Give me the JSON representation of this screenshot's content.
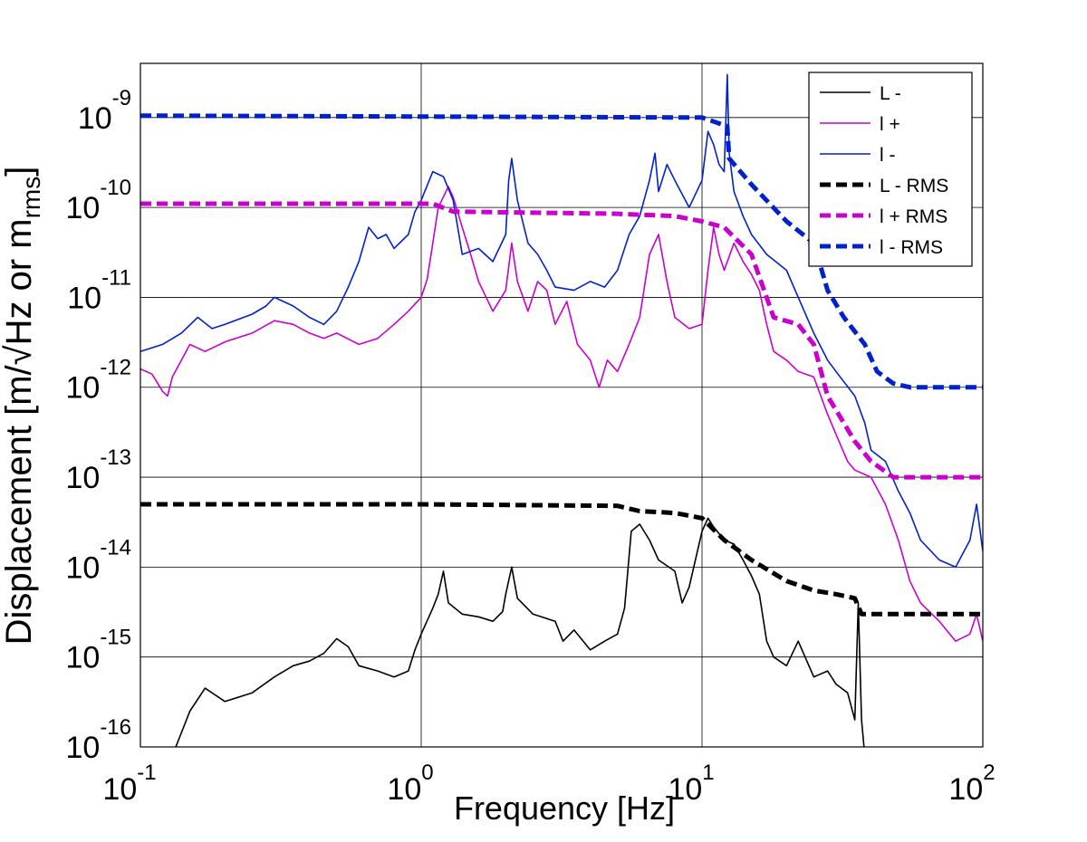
{
  "chart_data": {
    "type": "line",
    "xscale": "log",
    "yscale": "log",
    "xlim": [
      0.1,
      100
    ],
    "ylim": [
      1e-16,
      4e-09
    ],
    "grid": true,
    "legend_position": "top-right",
    "xlabel": "Frequency [Hz]",
    "ylabel": {
      "main": "Displacement [m/√Hz or m",
      "sub": "rms",
      "close": "]"
    },
    "x_ticks": [
      {
        "base": "10",
        "exp": "-1",
        "value": 0.1
      },
      {
        "base": "10",
        "exp": "0",
        "value": 1
      },
      {
        "base": "10",
        "exp": "1",
        "value": 10
      },
      {
        "base": "10",
        "exp": "2",
        "value": 100
      }
    ],
    "y_ticks": [
      {
        "base": "10",
        "exp": "-9",
        "value": 1e-09
      },
      {
        "base": "10",
        "exp": "-10",
        "value": 1e-10
      },
      {
        "base": "10",
        "exp": "-11",
        "value": 1e-11
      },
      {
        "base": "10",
        "exp": "-12",
        "value": 1e-12
      },
      {
        "base": "10",
        "exp": "-13",
        "value": 1e-13
      },
      {
        "base": "10",
        "exp": "-14",
        "value": 1e-14
      },
      {
        "base": "10",
        "exp": "-15",
        "value": 1e-15
      },
      {
        "base": "10",
        "exp": "-16",
        "value": 1e-16
      }
    ],
    "series": [
      {
        "name": "L -",
        "color": "#000000",
        "style": "solid",
        "points": [
          [
            0.1,
            2e-17
          ],
          [
            0.13,
            8e-17
          ],
          [
            0.15,
            2.5e-16
          ],
          [
            0.17,
            4.5e-16
          ],
          [
            0.2,
            3.2e-16
          ],
          [
            0.25,
            4e-16
          ],
          [
            0.3,
            6e-16
          ],
          [
            0.35,
            8e-16
          ],
          [
            0.4,
            9e-16
          ],
          [
            0.45,
            1.1e-15
          ],
          [
            0.5,
            1.6e-15
          ],
          [
            0.55,
            1.3e-15
          ],
          [
            0.6,
            8e-16
          ],
          [
            0.7,
            7e-16
          ],
          [
            0.8,
            6e-16
          ],
          [
            0.9,
            7e-16
          ],
          [
            0.95,
            1.2e-15
          ],
          [
            1.0,
            1.8e-15
          ],
          [
            1.1,
            3.5e-15
          ],
          [
            1.15,
            5e-15
          ],
          [
            1.2,
            9e-15
          ],
          [
            1.25,
            4e-15
          ],
          [
            1.4,
            3e-15
          ],
          [
            1.6,
            2.8e-15
          ],
          [
            1.8,
            2.5e-15
          ],
          [
            1.95,
            3.2e-15
          ],
          [
            2.0,
            5e-15
          ],
          [
            2.1,
            1e-14
          ],
          [
            2.2,
            4.5e-15
          ],
          [
            2.5,
            3e-15
          ],
          [
            3.0,
            2.5e-15
          ],
          [
            3.2,
            1.5e-15
          ],
          [
            3.5,
            2e-15
          ],
          [
            4.0,
            1.2e-15
          ],
          [
            4.5,
            1.5e-15
          ],
          [
            5.0,
            1.8e-15
          ],
          [
            5.3,
            3.5e-15
          ],
          [
            5.6,
            2.5e-14
          ],
          [
            6.0,
            3e-14
          ],
          [
            6.5,
            2e-14
          ],
          [
            7.0,
            1.2e-14
          ],
          [
            8.0,
            9e-15
          ],
          [
            8.5,
            4e-15
          ],
          [
            9.0,
            6e-15
          ],
          [
            10,
            2.5e-14
          ],
          [
            10.5,
            3.5e-14
          ],
          [
            11,
            2.8e-14
          ],
          [
            12,
            2e-14
          ],
          [
            13,
            1.8e-14
          ],
          [
            14,
            1.2e-14
          ],
          [
            15,
            8e-15
          ],
          [
            16,
            5e-15
          ],
          [
            17,
            1.5e-15
          ],
          [
            18,
            1e-15
          ],
          [
            20,
            8e-16
          ],
          [
            22,
            1.5e-15
          ],
          [
            25,
            6e-16
          ],
          [
            28,
            7e-16
          ],
          [
            30,
            5e-16
          ],
          [
            33,
            4e-16
          ],
          [
            35,
            2e-16
          ],
          [
            36,
            4e-15
          ],
          [
            37,
            2e-16
          ],
          [
            38,
            8e-17
          ],
          [
            40,
            3e-17
          ]
        ]
      },
      {
        "name": "l +",
        "color": "#cc00cc",
        "style": "solid",
        "points": [
          [
            0.1,
            1.6e-12
          ],
          [
            0.11,
            1.4e-12
          ],
          [
            0.12,
            9e-13
          ],
          [
            0.125,
            8e-13
          ],
          [
            0.13,
            1.3e-12
          ],
          [
            0.14,
            2e-12
          ],
          [
            0.15,
            3e-12
          ],
          [
            0.17,
            2.5e-12
          ],
          [
            0.2,
            3.2e-12
          ],
          [
            0.25,
            4e-12
          ],
          [
            0.3,
            5.5e-12
          ],
          [
            0.35,
            5e-12
          ],
          [
            0.4,
            4e-12
          ],
          [
            0.45,
            3.5e-12
          ],
          [
            0.5,
            4e-12
          ],
          [
            0.6,
            3e-12
          ],
          [
            0.7,
            3.5e-12
          ],
          [
            0.8,
            5e-12
          ],
          [
            0.9,
            7e-12
          ],
          [
            1.0,
            1e-11
          ],
          [
            1.05,
            1.6e-11
          ],
          [
            1.1,
            4e-11
          ],
          [
            1.15,
            1e-10
          ],
          [
            1.25,
            1.7e-10
          ],
          [
            1.3,
            1.3e-10
          ],
          [
            1.4,
            6e-11
          ],
          [
            1.5,
            3e-11
          ],
          [
            1.6,
            1.5e-11
          ],
          [
            1.8,
            7e-12
          ],
          [
            2.0,
            1.2e-11
          ],
          [
            2.1,
            4e-11
          ],
          [
            2.2,
            1.5e-11
          ],
          [
            2.4,
            7e-12
          ],
          [
            2.6,
            1.5e-11
          ],
          [
            2.8,
            1.2e-11
          ],
          [
            3.0,
            5e-12
          ],
          [
            3.3,
            9e-12
          ],
          [
            3.6,
            3e-12
          ],
          [
            4.0,
            2e-12
          ],
          [
            4.3,
            1e-12
          ],
          [
            4.6,
            2e-12
          ],
          [
            5.0,
            1.5e-12
          ],
          [
            5.5,
            3e-12
          ],
          [
            6.0,
            6e-12
          ],
          [
            6.5,
            3e-11
          ],
          [
            7.0,
            5e-11
          ],
          [
            7.5,
            1.5e-11
          ],
          [
            8.0,
            6e-12
          ],
          [
            9.0,
            4.5e-12
          ],
          [
            10,
            5e-12
          ],
          [
            10.5,
            2e-11
          ],
          [
            11,
            6e-11
          ],
          [
            11.5,
            3e-11
          ],
          [
            12,
            2e-11
          ],
          [
            13,
            4e-11
          ],
          [
            14,
            2.5e-11
          ],
          [
            15,
            1.8e-11
          ],
          [
            16,
            1.2e-11
          ],
          [
            17,
            5e-12
          ],
          [
            18,
            2.5e-12
          ],
          [
            20,
            2e-12
          ],
          [
            22,
            1.5e-12
          ],
          [
            25,
            1.3e-12
          ],
          [
            28,
            5e-13
          ],
          [
            30,
            3e-13
          ],
          [
            33,
            1.5e-13
          ],
          [
            35,
            1.2e-13
          ],
          [
            40,
            1e-13
          ],
          [
            45,
            5e-14
          ],
          [
            50,
            2e-14
          ],
          [
            55,
            7e-15
          ],
          [
            60,
            4e-15
          ],
          [
            70,
            2.5e-15
          ],
          [
            80,
            1.5e-15
          ],
          [
            90,
            1.8e-15
          ],
          [
            95,
            3e-15
          ],
          [
            100,
            1.5e-15
          ]
        ]
      },
      {
        "name": "l -",
        "color": "#0022cc",
        "style": "solid",
        "points": [
          [
            0.1,
            2.5e-12
          ],
          [
            0.12,
            3e-12
          ],
          [
            0.14,
            4e-12
          ],
          [
            0.16,
            6e-12
          ],
          [
            0.18,
            4.5e-12
          ],
          [
            0.2,
            5e-12
          ],
          [
            0.25,
            6.5e-12
          ],
          [
            0.28,
            8e-12
          ],
          [
            0.3,
            1e-11
          ],
          [
            0.35,
            8e-12
          ],
          [
            0.4,
            6e-12
          ],
          [
            0.45,
            5e-12
          ],
          [
            0.5,
            7e-12
          ],
          [
            0.55,
            1.3e-11
          ],
          [
            0.6,
            2.5e-11
          ],
          [
            0.65,
            6e-11
          ],
          [
            0.7,
            4.5e-11
          ],
          [
            0.75,
            5e-11
          ],
          [
            0.8,
            3.5e-11
          ],
          [
            0.9,
            5e-11
          ],
          [
            0.95,
            9e-11
          ],
          [
            1.0,
            1.2e-10
          ],
          [
            1.1,
            2.5e-10
          ],
          [
            1.2,
            2.2e-10
          ],
          [
            1.3,
            1.2e-10
          ],
          [
            1.4,
            3e-11
          ],
          [
            1.6,
            3.5e-11
          ],
          [
            1.8,
            2.5e-11
          ],
          [
            2.0,
            5e-11
          ],
          [
            2.05,
            2e-10
          ],
          [
            2.1,
            3.5e-10
          ],
          [
            2.2,
            1.2e-10
          ],
          [
            2.4,
            4e-11
          ],
          [
            2.6,
            3e-11
          ],
          [
            2.8,
            2e-11
          ],
          [
            3.0,
            1.3e-11
          ],
          [
            3.5,
            1.2e-11
          ],
          [
            4.0,
            1.5e-11
          ],
          [
            4.5,
            1.3e-11
          ],
          [
            5.0,
            2e-11
          ],
          [
            5.5,
            5e-11
          ],
          [
            6.0,
            8e-11
          ],
          [
            6.5,
            2e-10
          ],
          [
            6.8,
            4e-10
          ],
          [
            7.0,
            1.5e-10
          ],
          [
            7.5,
            3e-10
          ],
          [
            8.0,
            2e-10
          ],
          [
            9.0,
            1e-10
          ],
          [
            10,
            2e-10
          ],
          [
            10.5,
            7e-10
          ],
          [
            11,
            5e-10
          ],
          [
            11.5,
            3e-10
          ],
          [
            12,
            2.5e-10
          ],
          [
            12.3,
            3e-09
          ],
          [
            12.5,
            4e-10
          ],
          [
            13,
            1.5e-10
          ],
          [
            14,
            8e-11
          ],
          [
            15,
            5e-11
          ],
          [
            17,
            3e-11
          ],
          [
            20,
            2e-11
          ],
          [
            22,
            1e-11
          ],
          [
            25,
            4e-12
          ],
          [
            28,
            2e-12
          ],
          [
            30,
            1.5e-12
          ],
          [
            35,
            8e-13
          ],
          [
            38,
            4e-13
          ],
          [
            40,
            2e-13
          ],
          [
            45,
            1.5e-13
          ],
          [
            50,
            7e-14
          ],
          [
            55,
            4e-14
          ],
          [
            60,
            2e-14
          ],
          [
            70,
            1.2e-14
          ],
          [
            80,
            1e-14
          ],
          [
            90,
            2e-14
          ],
          [
            95,
            5e-14
          ],
          [
            100,
            1.5e-14
          ]
        ]
      },
      {
        "name": "L - RMS",
        "color": "#000000",
        "style": "dashed",
        "points": [
          [
            0.1,
            5e-14
          ],
          [
            1,
            5e-14
          ],
          [
            5,
            4.8e-14
          ],
          [
            6,
            4.2e-14
          ],
          [
            8,
            4e-14
          ],
          [
            10,
            3.5e-14
          ],
          [
            12,
            2e-14
          ],
          [
            15,
            1.2e-14
          ],
          [
            20,
            7e-15
          ],
          [
            25,
            5.5e-15
          ],
          [
            30,
            5e-15
          ],
          [
            35,
            4.5e-15
          ],
          [
            37,
            3e-15
          ],
          [
            100,
            3e-15
          ]
        ]
      },
      {
        "name": "l + RMS",
        "color": "#cc00cc",
        "style": "dashed",
        "points": [
          [
            0.1,
            1.1e-10
          ],
          [
            1.1,
            1.1e-10
          ],
          [
            1.3,
            9e-11
          ],
          [
            5,
            8.5e-11
          ],
          [
            8,
            8e-11
          ],
          [
            10,
            7e-11
          ],
          [
            12,
            6e-11
          ],
          [
            15,
            3e-11
          ],
          [
            18,
            6e-12
          ],
          [
            22,
            5e-12
          ],
          [
            25,
            3e-12
          ],
          [
            28,
            8e-13
          ],
          [
            32,
            4e-13
          ],
          [
            35,
            2.5e-13
          ],
          [
            40,
            1.5e-13
          ],
          [
            48,
            1e-13
          ],
          [
            100,
            1e-13
          ]
        ]
      },
      {
        "name": "l - RMS",
        "color": "#0022cc",
        "style": "dashed",
        "points": [
          [
            0.1,
            1.05e-09
          ],
          [
            10,
            1e-09
          ],
          [
            12.3,
            8e-10
          ],
          [
            12.5,
            3.5e-10
          ],
          [
            15,
            1.8e-10
          ],
          [
            20,
            7e-11
          ],
          [
            25,
            4e-11
          ],
          [
            28,
            1.2e-11
          ],
          [
            32,
            6e-12
          ],
          [
            38,
            3e-12
          ],
          [
            42,
            1.5e-12
          ],
          [
            48,
            1.1e-12
          ],
          [
            55,
            1e-12
          ],
          [
            100,
            1e-12
          ]
        ]
      }
    ]
  }
}
